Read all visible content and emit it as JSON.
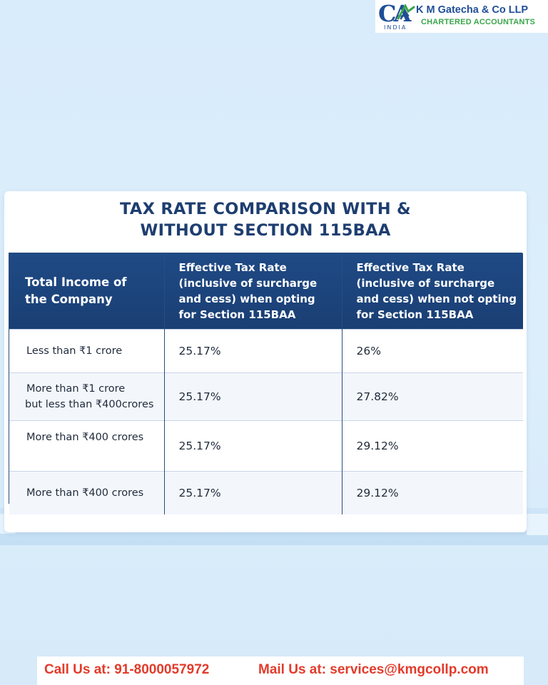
{
  "header": {
    "logo_text": "CA",
    "logo_sub": "INDIA",
    "firm_name": "K M Gatecha & Co LLP",
    "firm_subtitle": "CHARTERED ACCOUNTANTS"
  },
  "card": {
    "title_line1": "TAX RATE COMPARISON WITH &",
    "title_line2": "WITHOUT SECTION 115BAA"
  },
  "table": {
    "headers": {
      "col1": [
        "Total Income of",
        "the Company"
      ],
      "col2": [
        "Effective Tax Rate",
        "(inclusive of surcharge",
        "and cess) when opting",
        "for Section 115BAA"
      ],
      "col3": [
        "Effective Tax Rate",
        "(inclusive of surcharge",
        "and cess) when not opting",
        "for Section 115BAA"
      ]
    },
    "rows": [
      {
        "label": [
          "Less than ₹1 crore"
        ],
        "opting": "25.17%",
        "not_opting": "26%"
      },
      {
        "label": [
          "More than ₹1 crore",
          "but less than ₹400crores"
        ],
        "opting": "25.17%",
        "not_opting": "27.82%"
      },
      {
        "label": [
          "More than ₹400 crores"
        ],
        "opting": "25.17%",
        "not_opting": "29.12%"
      },
      {
        "label": [
          "More than ₹400 crores"
        ],
        "opting": "25.17%",
        "not_opting": "29.12%"
      }
    ]
  },
  "footer": {
    "call": "Call Us at: 91-8000057972",
    "mail": "Mail Us at: services@kmgcollp.com"
  },
  "colors": {
    "brand_blue": "#1f4e97",
    "brand_green": "#3aa64a",
    "header_bg": "#1f4a85",
    "footer_text": "#e23b2b"
  }
}
